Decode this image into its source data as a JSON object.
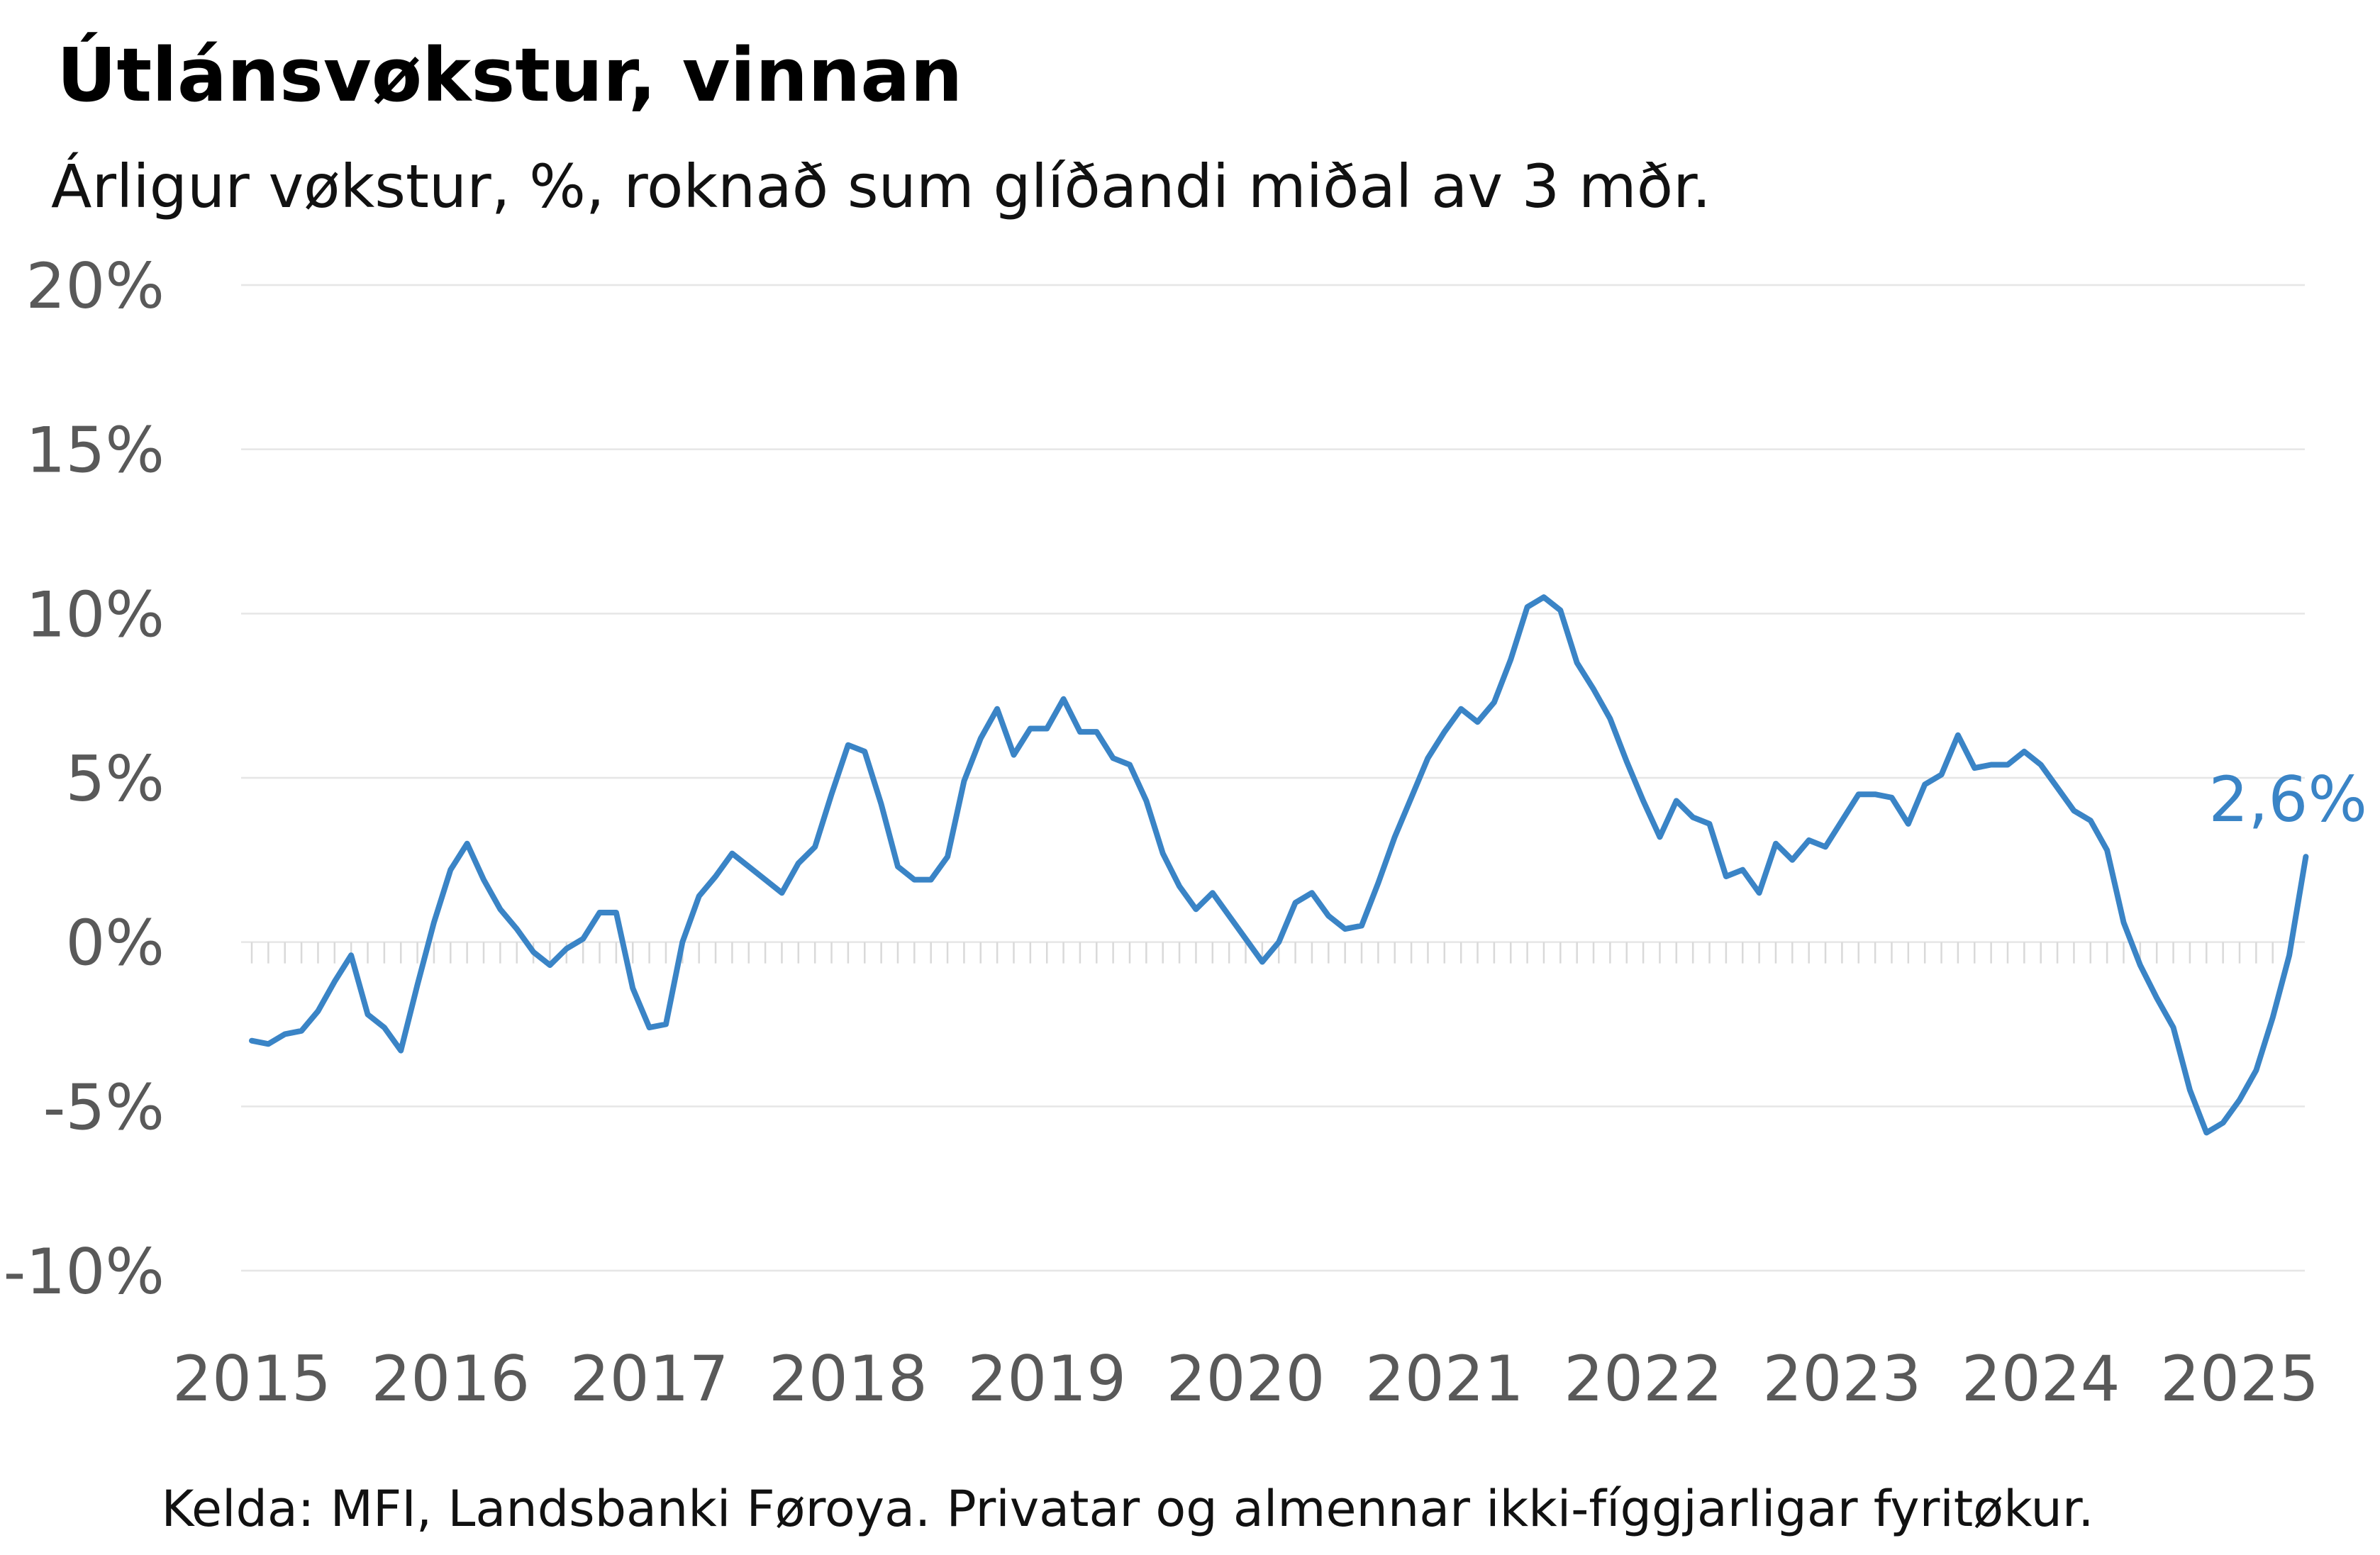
{
  "chart_data": {
    "type": "line",
    "title": "Útlánsvøkstur, vinnan",
    "subtitle": "Árligur vøkstur, %, roknað sum glíðandi miðal av 3 mðr.",
    "source": "Kelda: MFI, Landsbanki Føroya. Privatar og almennar ikki-fíggjarligar fyritøkur.",
    "ylim": [
      -10,
      20
    ],
    "yticks": [
      20,
      15,
      10,
      5,
      0,
      -5,
      -10
    ],
    "ytick_labels": [
      "20%",
      "15%",
      "10%",
      "5%",
      "0%",
      "-5%",
      "-10%"
    ],
    "xticks": [
      "2015",
      "2016",
      "2017",
      "2018",
      "2019",
      "2020",
      "2021",
      "2022",
      "2023",
      "2024",
      "2025"
    ],
    "x_start": "2015-01",
    "grid": true,
    "end_label": "2,6%",
    "color": "#3a84c6",
    "series": [
      {
        "values": [
          -3.0,
          -3.1,
          -2.8,
          -2.7,
          -2.1,
          -1.2,
          -0.4,
          -2.2,
          -2.6,
          -3.3,
          -1.3,
          0.6,
          2.2,
          3.0,
          1.9,
          1.0,
          0.4,
          -0.3,
          -0.7,
          -0.2,
          0.1,
          0.9,
          0.9,
          -1.4,
          -2.6,
          -2.5,
          0.0,
          1.4,
          2.0,
          2.7,
          2.3,
          1.9,
          1.5,
          2.4,
          2.9,
          4.5,
          6.0,
          5.8,
          4.2,
          2.3,
          1.9,
          1.9,
          2.6,
          4.9,
          6.2,
          7.1,
          5.7,
          6.5,
          6.5,
          7.4,
          6.4,
          6.4,
          5.6,
          5.4,
          4.3,
          2.7,
          1.7,
          1.0,
          1.5,
          0.8,
          0.1,
          -0.6,
          0.0,
          1.2,
          1.5,
          0.8,
          0.4,
          0.5,
          1.8,
          3.2,
          4.4,
          5.6,
          6.4,
          7.1,
          6.7,
          7.3,
          8.6,
          10.2,
          10.5,
          10.1,
          8.5,
          7.7,
          6.8,
          5.5,
          4.3,
          3.2,
          4.3,
          3.8,
          3.6,
          2.0,
          2.2,
          1.5,
          3.0,
          2.5,
          3.1,
          2.9,
          3.7,
          4.5,
          4.5,
          4.4,
          3.6,
          4.8,
          5.1,
          6.3,
          5.3,
          5.4,
          5.4,
          5.8,
          5.4,
          4.7,
          4.0,
          3.7,
          2.8,
          0.6,
          -0.7,
          -1.7,
          -2.6,
          -4.5,
          -5.8,
          -5.5,
          -4.8,
          -3.9,
          -2.3,
          -0.4,
          2.6
        ]
      }
    ]
  }
}
